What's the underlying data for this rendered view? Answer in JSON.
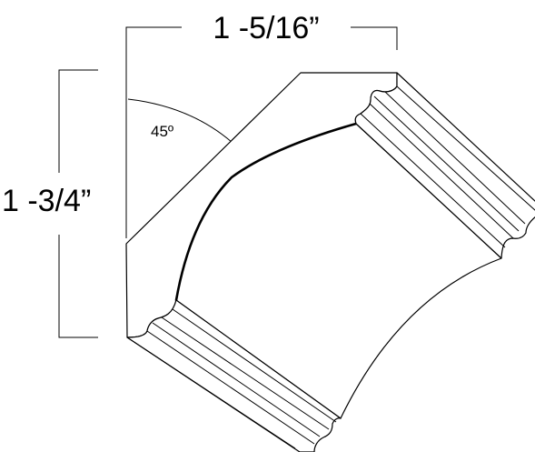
{
  "diagram": {
    "width_label": "1 -5/16”",
    "height_label": "1 -3/4”",
    "angle_label": "45º",
    "line_color": "#000000",
    "background_color": "#ffffff"
  }
}
